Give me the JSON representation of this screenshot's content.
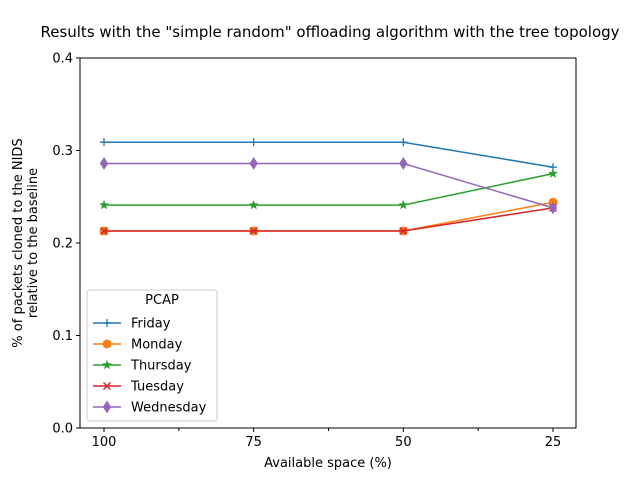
{
  "chart_data": {
    "type": "line",
    "title": "Results with the \"simple random\" offloading algorithm with the tree topology",
    "xlabel": "Available space (%)",
    "ylabel_line1": "% of packets cloned to the NIDS",
    "ylabel_line2": "relative to the baseline",
    "categories": [
      "100",
      "75",
      "50",
      "25"
    ],
    "ylim": [
      0,
      0.4
    ],
    "yticks": [
      "0.0",
      "0.1",
      "0.2",
      "0.3",
      "0.4"
    ],
    "grid": false,
    "legend": {
      "title": "PCAP",
      "placement": "lower-left"
    },
    "series": [
      {
        "name": "Friday",
        "color": "#1f77b4",
        "marker": "plus",
        "values": [
          0.309,
          0.309,
          0.309,
          0.282
        ]
      },
      {
        "name": "Monday",
        "color": "#ff7f0e",
        "marker": "circle",
        "values": [
          0.213,
          0.213,
          0.213,
          0.244
        ]
      },
      {
        "name": "Thursday",
        "color": "#2ca02c",
        "marker": "star",
        "values": [
          0.241,
          0.241,
          0.241,
          0.275
        ]
      },
      {
        "name": "Tuesday",
        "color": "#d62728",
        "marker": "x",
        "values": [
          0.213,
          0.213,
          0.213,
          0.238
        ]
      },
      {
        "name": "Wednesday",
        "color": "#9467bd",
        "marker": "diamond",
        "values": [
          0.286,
          0.286,
          0.286,
          0.238
        ]
      }
    ]
  }
}
